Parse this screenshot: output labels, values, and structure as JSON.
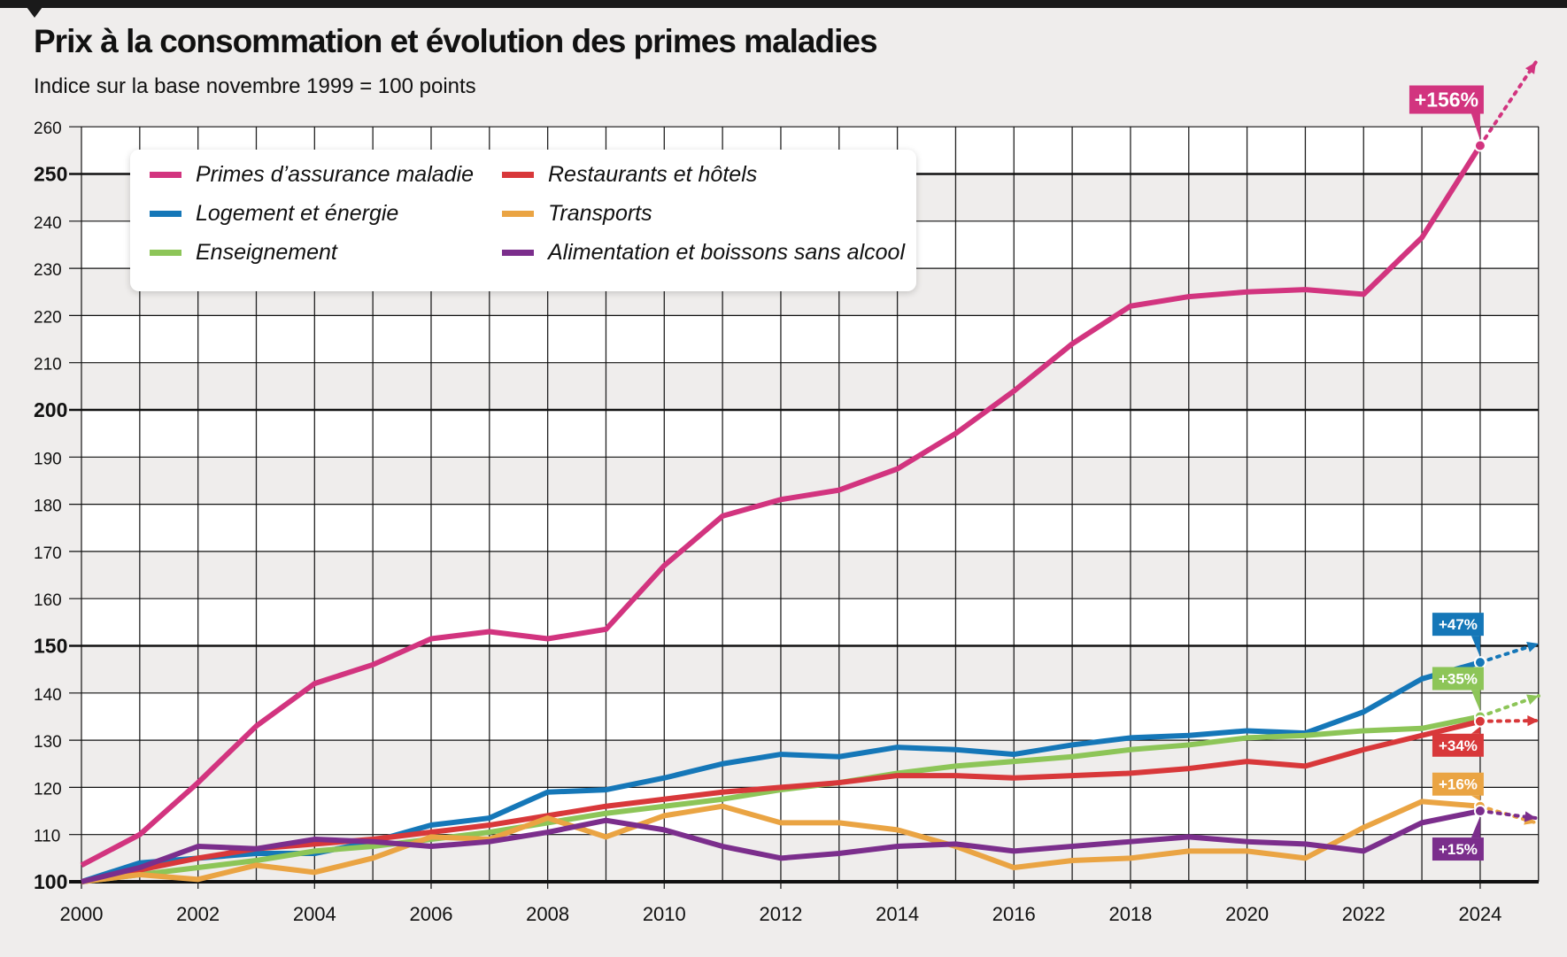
{
  "chart_data": {
    "type": "line",
    "title": "Prix à la consommation et évolution des primes maladies",
    "subtitle": "Indice sur la base novembre 1999 = 100 points",
    "xlabel": "",
    "ylabel": "",
    "x": [
      2000,
      2001,
      2002,
      2003,
      2004,
      2005,
      2006,
      2007,
      2008,
      2009,
      2010,
      2011,
      2012,
      2013,
      2014,
      2015,
      2016,
      2017,
      2018,
      2019,
      2020,
      2021,
      2022,
      2023,
      2024
    ],
    "x_ticks": [
      "2000",
      "2002",
      "2004",
      "2006",
      "2008",
      "2010",
      "2012",
      "2014",
      "2016",
      "2018",
      "2020",
      "2022",
      "2024"
    ],
    "y_ticks": [
      "100",
      "110",
      "120",
      "130",
      "140",
      "150",
      "160",
      "170",
      "180",
      "190",
      "200",
      "210",
      "220",
      "230",
      "240",
      "250",
      "260"
    ],
    "ylim": [
      100,
      260
    ],
    "grid": true,
    "legend_position": "top-left",
    "series": [
      {
        "name": "Primes d’assurance maladie",
        "color": "#d2347f",
        "end_label": "+156%",
        "values": [
          103.5,
          110,
          121,
          133,
          142,
          146,
          151.5,
          153,
          151.5,
          153.5,
          167,
          177.5,
          181,
          183,
          187.5,
          195,
          204,
          214,
          222,
          224,
          225,
          225.5,
          224.5,
          236.5,
          256
        ]
      },
      {
        "name": "Logement et énergie",
        "color": "#1577b8",
        "end_label": "+47%",
        "values": [
          100,
          104,
          105,
          106,
          106,
          108.5,
          112,
          113.5,
          119,
          119.5,
          122,
          125,
          127,
          126.5,
          128.5,
          128,
          127,
          129,
          130.5,
          131,
          132,
          131.5,
          136,
          143,
          146.5
        ]
      },
      {
        "name": "Enseignement",
        "color": "#8dc558",
        "end_label": "+35%",
        "values": [
          100,
          101.5,
          103,
          104.5,
          106.5,
          107.5,
          109,
          110.5,
          112.5,
          114.5,
          116,
          117.5,
          119.5,
          121,
          123,
          124.5,
          125.5,
          126.5,
          128,
          129,
          130.5,
          131,
          132,
          132.5,
          135
        ]
      },
      {
        "name": "Restaurants et hôtels",
        "color": "#d8383a",
        "end_label": "+34%",
        "values": [
          100,
          102.5,
          105,
          107,
          108,
          109,
          110.5,
          112,
          114,
          116,
          117.5,
          119,
          120,
          121,
          122.5,
          122.5,
          122,
          122.5,
          123,
          124,
          125.5,
          124.5,
          128,
          131,
          134
        ]
      },
      {
        "name": "Transports",
        "color": "#eaa443",
        "end_label": "+16%",
        "values": [
          100,
          101.5,
          100.5,
          103.5,
          102,
          105,
          109.5,
          109,
          113.5,
          109.5,
          114,
          116,
          112.5,
          112.5,
          111,
          107.5,
          103,
          104.5,
          105,
          106.5,
          106.5,
          105,
          111.5,
          117,
          116
        ]
      },
      {
        "name": "Alimentation et boissons sans alcool",
        "color": "#7b2e8c",
        "end_label": "+15%",
        "values": [
          100,
          103,
          107.5,
          107,
          109,
          108.5,
          107.5,
          108.5,
          110.5,
          113,
          111,
          107.5,
          105,
          106,
          107.5,
          108,
          106.5,
          107.5,
          108.5,
          109.5,
          108.5,
          108,
          106.5,
          112.5,
          115
        ]
      }
    ]
  }
}
